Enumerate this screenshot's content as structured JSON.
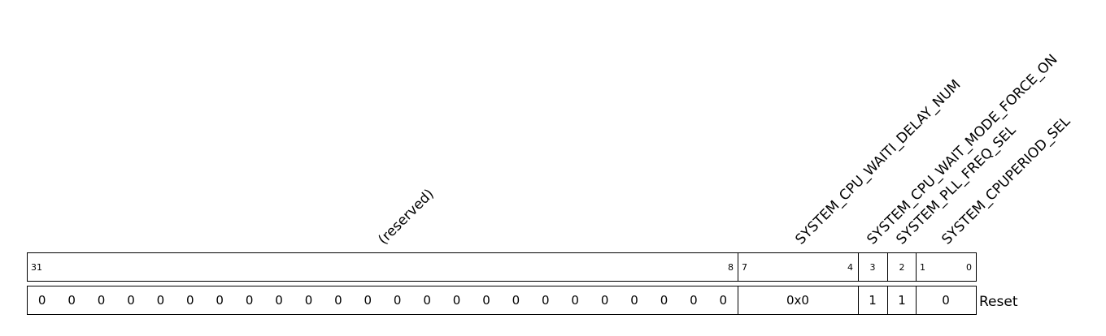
{
  "fields": [
    {
      "name": "(reserved)",
      "bits_hi": "31",
      "bits_lo": "8",
      "reset_values": [
        "0",
        "0",
        "0",
        "0",
        "0",
        "0",
        "0",
        "0",
        "0",
        "0",
        "0",
        "0",
        "0",
        "0",
        "0",
        "0",
        "0",
        "0",
        "0",
        "0",
        "0",
        "0",
        "0",
        "0"
      ]
    },
    {
      "name": "SYSTEM_CPU_WAITI_DELAY_NUM",
      "bits_hi": "7",
      "bits_lo": "4",
      "reset_values": [
        "0x0"
      ]
    },
    {
      "name": "SYSTEM_CPU_WAIT_MODE_FORCE_ON",
      "bits_hi": "3",
      "bits_lo": "",
      "reset_values": [
        "1"
      ]
    },
    {
      "name": "SYSTEM_PLL_FREQ_SEL",
      "bits_hi": "2",
      "bits_lo": "",
      "reset_values": [
        "1"
      ]
    },
    {
      "name": "SYSTEM_CPUPERIOD_SEL",
      "bits_hi": "1",
      "bits_lo": "0",
      "reset_values": [
        "0"
      ]
    }
  ],
  "reset_label": "Reset"
}
